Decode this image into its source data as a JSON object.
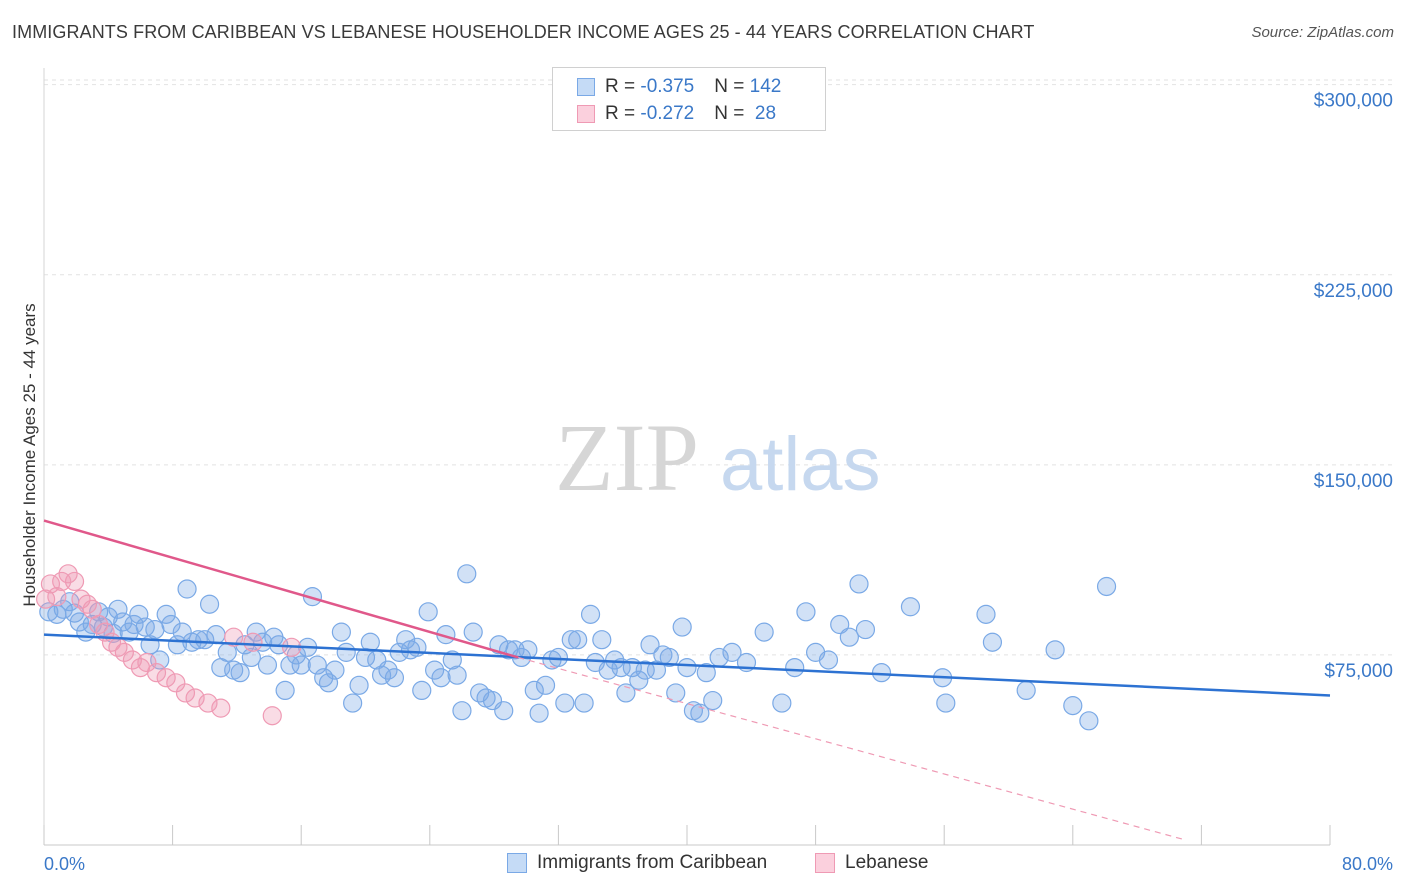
{
  "title": "IMMIGRANTS FROM CARIBBEAN VS LEBANESE HOUSEHOLDER INCOME AGES 25 - 44 YEARS CORRELATION CHART",
  "source": "Source: ZipAtlas.com",
  "watermark": {
    "zip": "ZIP",
    "atlas": "atlas"
  },
  "legend": {
    "rows": [
      {
        "r_label": "R = ",
        "r_value": "-0.375",
        "n_label": "N = ",
        "n_value": "142",
        "color": "#7aa9e6"
      },
      {
        "r_label": "R = ",
        "r_value": "-0.272",
        "n_label": "N = ",
        "n_value": " 28",
        "color": "#ef9ab4"
      }
    ]
  },
  "bottom_legend": {
    "caribbean": "Immigrants from Caribbean",
    "lebanese": "Lebanese"
  },
  "chart_data": {
    "type": "scatter",
    "xlabel": "",
    "ylabel": "Householder Income Ages 25 - 44 years",
    "xlim": [
      0,
      80
    ],
    "ylim": [
      0,
      305000
    ],
    "x_tick_labels": {
      "min": "0.0%",
      "max": "80.0%"
    },
    "y_ticks": [
      {
        "value": 75000,
        "label": "$75,000"
      },
      {
        "value": 150000,
        "label": "$150,000"
      },
      {
        "value": 225000,
        "label": "$225,000"
      },
      {
        "value": 300000,
        "label": "$300,000"
      }
    ],
    "colors": {
      "caribbean": "#7aa9e6",
      "caribbean_line": "#2d72d2",
      "lebanese": "#ef9ab4",
      "lebanese_line": "#e0588a"
    },
    "series": [
      {
        "name": "Immigrants from Caribbean",
        "trend": {
          "x0": 0,
          "y0": 83000,
          "x1": 80,
          "y1": 59000
        },
        "points": [
          [
            0.3,
            92000
          ],
          [
            0.8,
            91000
          ],
          [
            1.2,
            93000
          ],
          [
            1.6,
            96000
          ],
          [
            1.9,
            91500
          ],
          [
            2.2,
            88000
          ],
          [
            2.6,
            84000
          ],
          [
            3.0,
            87000
          ],
          [
            3.4,
            92000
          ],
          [
            3.7,
            86000
          ],
          [
            4.0,
            90000
          ],
          [
            4.3,
            83500
          ],
          [
            4.6,
            93000
          ],
          [
            4.9,
            88000
          ],
          [
            5.3,
            84000
          ],
          [
            5.6,
            87000
          ],
          [
            5.9,
            91000
          ],
          [
            6.3,
            86000
          ],
          [
            6.6,
            79000
          ],
          [
            6.9,
            85000
          ],
          [
            7.2,
            73000
          ],
          [
            7.6,
            91000
          ],
          [
            7.9,
            87000
          ],
          [
            8.3,
            79000
          ],
          [
            8.6,
            84000
          ],
          [
            8.9,
            101000
          ],
          [
            9.2,
            80000
          ],
          [
            9.6,
            81000
          ],
          [
            10.0,
            81000
          ],
          [
            10.3,
            95000
          ],
          [
            10.7,
            83000
          ],
          [
            11.0,
            70000
          ],
          [
            11.4,
            76000
          ],
          [
            11.8,
            69000
          ],
          [
            12.2,
            68000
          ],
          [
            12.5,
            79000
          ],
          [
            12.9,
            74000
          ],
          [
            13.2,
            84000
          ],
          [
            13.6,
            80000
          ],
          [
            13.9,
            71000
          ],
          [
            14.3,
            82000
          ],
          [
            14.6,
            79000
          ],
          [
            15.0,
            61000
          ],
          [
            15.3,
            71000
          ],
          [
            15.7,
            75000
          ],
          [
            16.0,
            71000
          ],
          [
            16.4,
            78000
          ],
          [
            16.7,
            98000
          ],
          [
            17.0,
            71000
          ],
          [
            17.4,
            66000
          ],
          [
            17.7,
            64000
          ],
          [
            18.1,
            69000
          ],
          [
            18.5,
            84000
          ],
          [
            18.8,
            76000
          ],
          [
            19.2,
            56000
          ],
          [
            19.6,
            63000
          ],
          [
            20.0,
            74000
          ],
          [
            20.3,
            80000
          ],
          [
            20.7,
            73000
          ],
          [
            21.0,
            67000
          ],
          [
            21.4,
            69000
          ],
          [
            21.8,
            66000
          ],
          [
            22.1,
            76000
          ],
          [
            22.5,
            81000
          ],
          [
            22.8,
            77000
          ],
          [
            23.2,
            78000
          ],
          [
            23.5,
            61000
          ],
          [
            23.9,
            92000
          ],
          [
            24.3,
            69000
          ],
          [
            24.7,
            66000
          ],
          [
            25.0,
            83000
          ],
          [
            25.4,
            73000
          ],
          [
            25.7,
            67000
          ],
          [
            26.0,
            53000
          ],
          [
            26.3,
            107000
          ],
          [
            26.7,
            84000
          ],
          [
            27.1,
            60000
          ],
          [
            27.5,
            58000
          ],
          [
            27.9,
            57000
          ],
          [
            28.3,
            79000
          ],
          [
            28.6,
            53000
          ],
          [
            28.9,
            77000
          ],
          [
            29.3,
            77000
          ],
          [
            29.7,
            74000
          ],
          [
            30.1,
            77000
          ],
          [
            30.5,
            61000
          ],
          [
            30.8,
            52000
          ],
          [
            31.2,
            63000
          ],
          [
            31.6,
            73000
          ],
          [
            32.0,
            74000
          ],
          [
            32.4,
            56000
          ],
          [
            32.8,
            81000
          ],
          [
            33.2,
            81000
          ],
          [
            33.6,
            56000
          ],
          [
            34.0,
            91000
          ],
          [
            34.3,
            72000
          ],
          [
            34.7,
            81000
          ],
          [
            35.1,
            69000
          ],
          [
            35.5,
            73000
          ],
          [
            35.9,
            70000
          ],
          [
            36.2,
            60000
          ],
          [
            36.6,
            70000
          ],
          [
            37.0,
            65000
          ],
          [
            37.4,
            69000
          ],
          [
            37.7,
            79000
          ],
          [
            38.1,
            69000
          ],
          [
            38.5,
            75000
          ],
          [
            38.9,
            74000
          ],
          [
            39.3,
            60000
          ],
          [
            39.7,
            86000
          ],
          [
            40.0,
            70000
          ],
          [
            40.4,
            53000
          ],
          [
            40.8,
            52000
          ],
          [
            41.2,
            68000
          ],
          [
            41.6,
            57000
          ],
          [
            42.0,
            74000
          ],
          [
            42.8,
            76000
          ],
          [
            43.7,
            72000
          ],
          [
            44.8,
            84000
          ],
          [
            45.9,
            56000
          ],
          [
            46.7,
            70000
          ],
          [
            47.4,
            92000
          ],
          [
            48.0,
            76000
          ],
          [
            48.8,
            73000
          ],
          [
            49.5,
            87000
          ],
          [
            50.1,
            82000
          ],
          [
            50.7,
            103000
          ],
          [
            51.1,
            85000
          ],
          [
            52.1,
            68000
          ],
          [
            53.9,
            94000
          ],
          [
            55.9,
            66000
          ],
          [
            56.1,
            56000
          ],
          [
            58.6,
            91000
          ],
          [
            59.0,
            80000
          ],
          [
            61.1,
            61000
          ],
          [
            62.9,
            77000
          ],
          [
            64.0,
            55000
          ],
          [
            65.0,
            49000
          ],
          [
            66.1,
            102000
          ]
        ]
      },
      {
        "name": "Lebanese",
        "trend": {
          "x0": 0,
          "y0": 128000,
          "x1": 29.5,
          "y1": 74000
        },
        "trend_dashed": {
          "x0": 29.5,
          "y0": 74000,
          "x1": 71,
          "y1": 2000
        },
        "points": [
          [
            0.1,
            97000
          ],
          [
            0.4,
            103000
          ],
          [
            0.8,
            98000
          ],
          [
            1.1,
            104000
          ],
          [
            1.5,
            107000
          ],
          [
            1.9,
            104000
          ],
          [
            2.3,
            97000
          ],
          [
            2.7,
            95000
          ],
          [
            3.0,
            93000
          ],
          [
            3.4,
            87000
          ],
          [
            3.8,
            84000
          ],
          [
            4.2,
            80000
          ],
          [
            4.6,
            78000
          ],
          [
            5.0,
            76000
          ],
          [
            5.5,
            73000
          ],
          [
            6.0,
            70000
          ],
          [
            6.4,
            72000
          ],
          [
            7.0,
            68000
          ],
          [
            7.6,
            66000
          ],
          [
            8.2,
            64000
          ],
          [
            8.8,
            60000
          ],
          [
            9.4,
            58000
          ],
          [
            10.2,
            56000
          ],
          [
            11.0,
            54000
          ],
          [
            11.8,
            82000
          ],
          [
            13.0,
            80000
          ],
          [
            14.2,
            51000
          ],
          [
            15.4,
            78000
          ]
        ]
      }
    ]
  }
}
